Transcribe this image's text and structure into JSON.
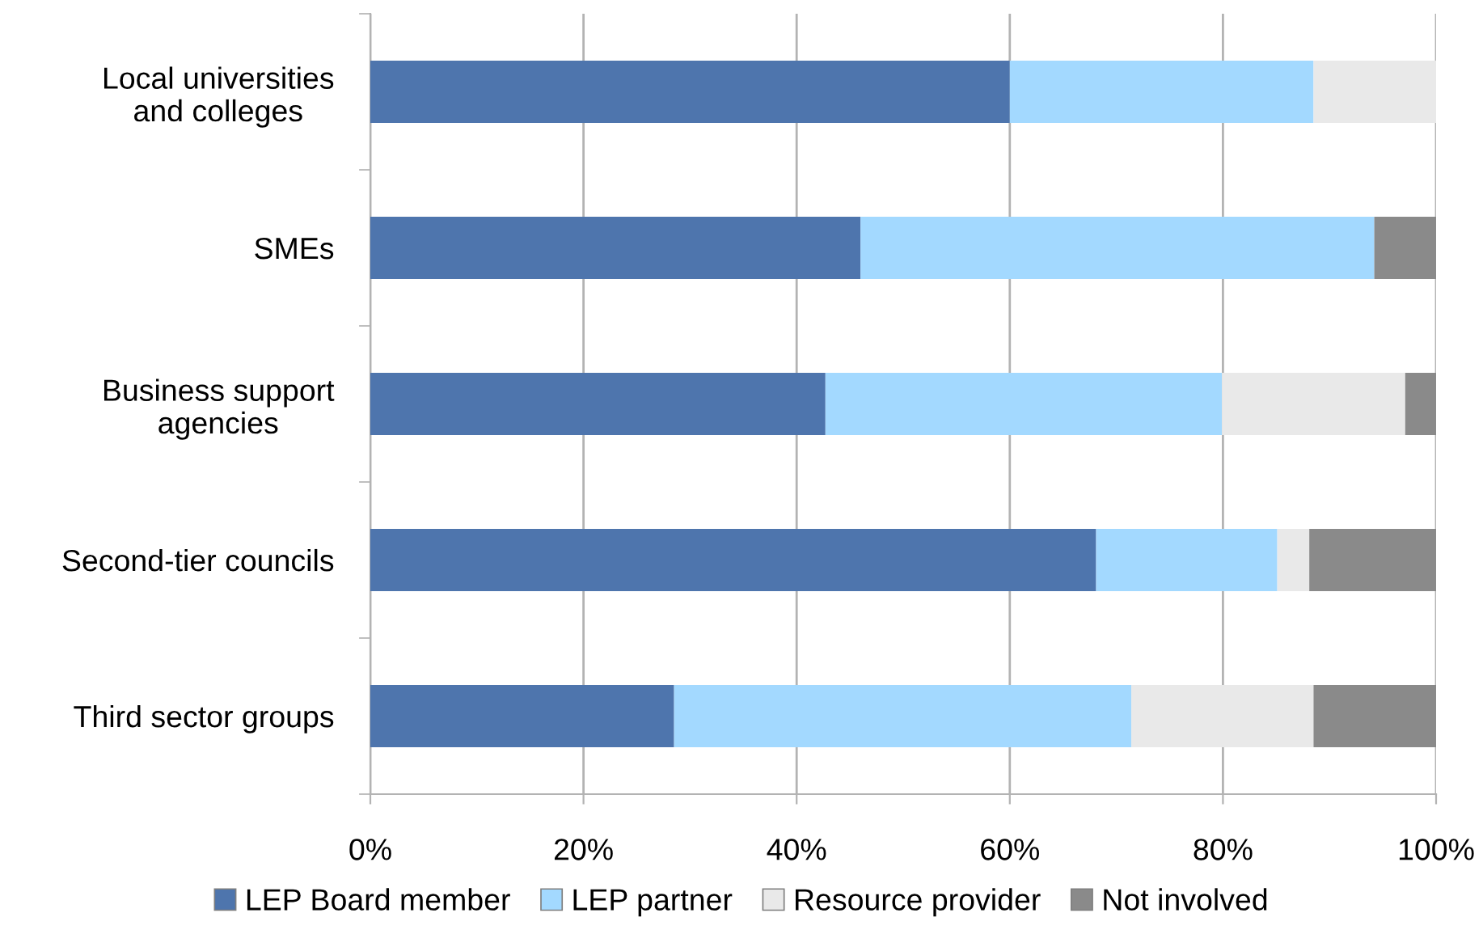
{
  "chart_data": {
    "type": "bar",
    "orientation": "horizontal",
    "stacked": true,
    "categories": [
      "Local universities\nand colleges",
      "SMEs",
      "Business support\nagencies",
      "Second-tier councils",
      "Third sector groups"
    ],
    "series": [
      {
        "name": "LEP Board member",
        "color": "#4e75ad",
        "values": [
          60,
          46,
          42.7,
          68.1,
          28.5
        ]
      },
      {
        "name": "LEP partner",
        "color": "#a3d9ff",
        "values": [
          28.5,
          48.2,
          37.2,
          17,
          42.9
        ]
      },
      {
        "name": "Resource provider",
        "color": "#e9e9e9",
        "values": [
          11.5,
          null,
          17.2,
          3,
          17.1
        ]
      },
      {
        "name": "Not involved",
        "color": "#8a8a8a",
        "values": [
          null,
          5.8,
          2.9,
          11.9,
          11.5
        ]
      }
    ],
    "xlim": [
      0,
      100
    ],
    "xticks": [
      {
        "value": 0,
        "label": "0%"
      },
      {
        "value": 20,
        "label": "20%"
      },
      {
        "value": 40,
        "label": "40%"
      },
      {
        "value": 60,
        "label": "60%"
      },
      {
        "value": 80,
        "label": "80%"
      },
      {
        "value": 100,
        "label": "100%"
      }
    ],
    "grid": "x",
    "legend": "bottom"
  }
}
